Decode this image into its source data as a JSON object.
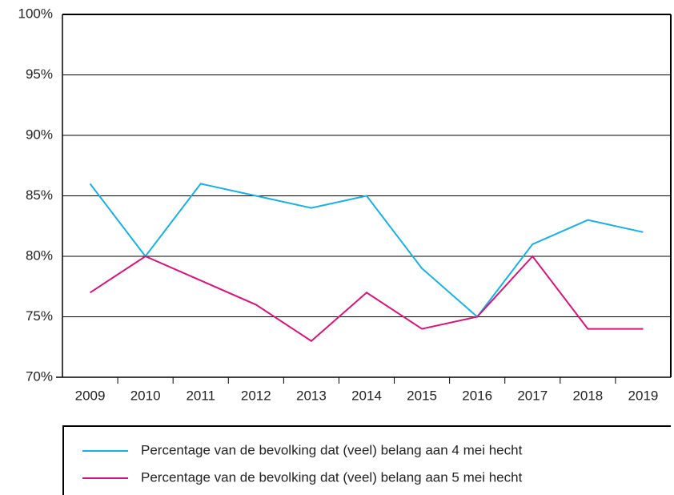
{
  "chart_data": {
    "type": "line",
    "categories": [
      "2009",
      "2010",
      "2011",
      "2012",
      "2013",
      "2014",
      "2015",
      "2016",
      "2017",
      "2018",
      "2019"
    ],
    "series": [
      {
        "name": "Percentage van de bevolking dat (veel) belang aan 4 mei hecht",
        "color": "#1ab0e0",
        "values": [
          86,
          80,
          86,
          85,
          84,
          85,
          79,
          75,
          81,
          83,
          82
        ]
      },
      {
        "name": "Percentage van de bevolking dat (veel) belang aan 5 mei hecht",
        "color": "#d6157a",
        "values": [
          77,
          80,
          78,
          76,
          73,
          77,
          74,
          75,
          80,
          74,
          74
        ]
      }
    ],
    "ylim": [
      70,
      100
    ],
    "yticks": [
      {
        "value": 70,
        "label": "70%"
      },
      {
        "value": 75,
        "label": "75%"
      },
      {
        "value": 80,
        "label": "80%"
      },
      {
        "value": 85,
        "label": "85%"
      },
      {
        "value": 90,
        "label": "90%"
      },
      {
        "value": 95,
        "label": "95%"
      },
      {
        "value": 100,
        "label": "100%"
      }
    ],
    "grid": true
  }
}
